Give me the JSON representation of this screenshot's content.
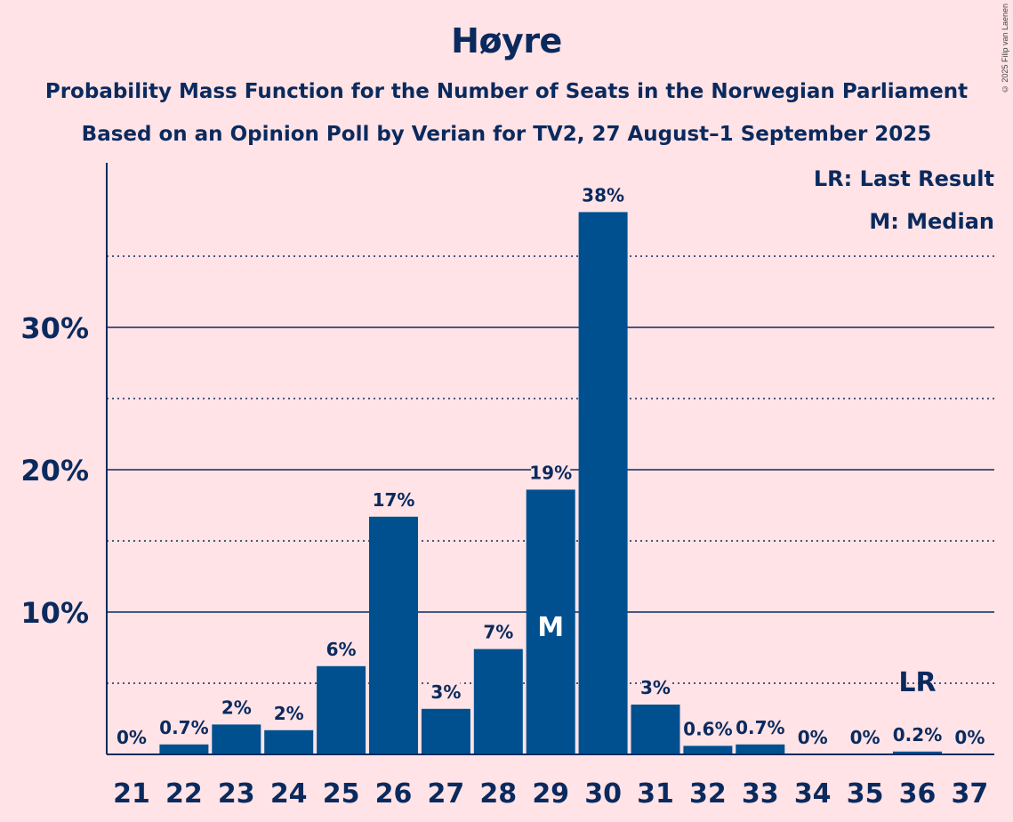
{
  "title": "Høyre",
  "subtitle1": "Probability Mass Function for the Number of Seats in the Norwegian Parliament",
  "subtitle2": "Based on an Opinion Poll by Verian for TV2, 27 August–1 September 2025",
  "copyright": "© 2025 Filip van Laenen",
  "colors": {
    "background": "#FFE3E6",
    "bar": "#00508F",
    "text": "#0A2A5E"
  },
  "chart_data": {
    "type": "bar",
    "categories": [
      "21",
      "22",
      "23",
      "24",
      "25",
      "26",
      "27",
      "28",
      "29",
      "30",
      "31",
      "32",
      "33",
      "34",
      "35",
      "36",
      "37"
    ],
    "values": [
      0,
      0.7,
      2.1,
      1.7,
      6.2,
      16.7,
      3.2,
      7.4,
      18.6,
      38.1,
      3.5,
      0.6,
      0.7,
      0,
      0,
      0.2,
      0
    ],
    "value_labels": [
      "0%",
      "0.7%",
      "2%",
      "2%",
      "6%",
      "17%",
      "3%",
      "7%",
      "19%",
      "38%",
      "3%",
      "0.6%",
      "0.7%",
      "0%",
      "0%",
      "0.2%",
      "0%"
    ],
    "ylim": [
      0,
      41.5
    ],
    "yticks": [
      10,
      20,
      30
    ],
    "ytick_labels": [
      "10%",
      "20%",
      "30%"
    ],
    "minor_gridlines": [
      5,
      15,
      25,
      35
    ],
    "grid": true,
    "median_category": "29",
    "median_marker": "M",
    "last_result_category": "36",
    "last_result_marker": "LR",
    "legend": [
      "LR: Last Result",
      "M: Median"
    ],
    "legend_position": "top-right"
  }
}
